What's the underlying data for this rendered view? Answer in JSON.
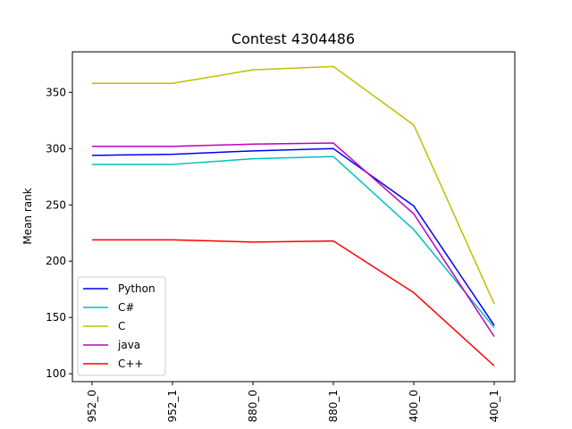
{
  "chart_data": {
    "type": "line",
    "title": "Contest 4304486",
    "xlabel": "",
    "ylabel": "Mean rank",
    "categories": [
      "952_0",
      "952_1",
      "880_0",
      "880_1",
      "400_0",
      "400_1"
    ],
    "yticks": [
      100,
      150,
      200,
      250,
      300,
      350
    ],
    "ylim": [
      93,
      386
    ],
    "grid": false,
    "legend_position": "lower-left",
    "series": [
      {
        "name": "Python",
        "color": "#0000ff",
        "values": [
          294,
          295,
          298,
          300,
          249,
          143
        ]
      },
      {
        "name": "C#",
        "color": "#00bfbf",
        "values": [
          286,
          286,
          291,
          293,
          228,
          141
        ]
      },
      {
        "name": "C",
        "color": "#bfbf00",
        "values": [
          358,
          358,
          370,
          373,
          321,
          162
        ]
      },
      {
        "name": "java",
        "color": "#bf00bf",
        "values": [
          302,
          302,
          304,
          305,
          242,
          133
        ]
      },
      {
        "name": "C++",
        "color": "#ff0000",
        "values": [
          219,
          219,
          217,
          218,
          172,
          107
        ]
      }
    ]
  }
}
